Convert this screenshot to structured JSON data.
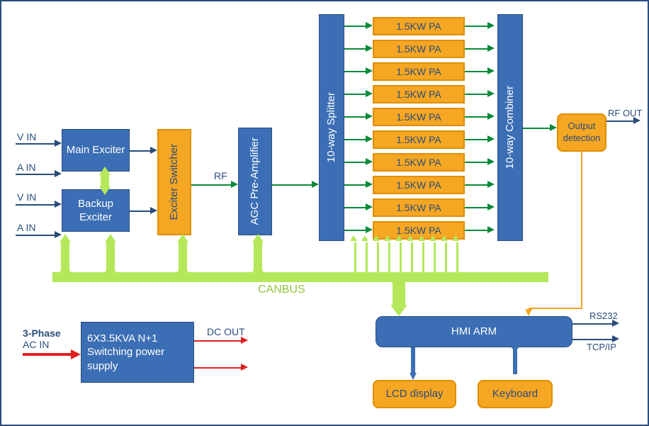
{
  "labels": {
    "vin1": "V IN",
    "ain1": "A IN",
    "vin2": "V IN",
    "ain2": "A IN",
    "rf": "RF",
    "canbus": "CANBUS",
    "rfout": "RF OUT",
    "rs232": "RS232",
    "tcpip": "TCP/IP",
    "dcout": "DC OUT",
    "threephase1": "3-Phase",
    "threephase2": "AC IN"
  },
  "blocks": {
    "main_exciter": "Main Exciter",
    "backup_exciter": "Backup Exciter",
    "exciter_switcher": "Exciter Switcher",
    "agc_preamp": "AGC Pre-Amplifier",
    "splitter": "10-way Splitter",
    "combiner": "10-way Combiner",
    "pa": "1.5KW PA",
    "output_detection": "Output detection",
    "power_supply": "6X3.5KVA N+1 Switching power supply",
    "hmi_arm": "HMI ARM",
    "lcd": "LCD display",
    "keyboard": "Keyboard"
  },
  "colors": {
    "blue": "#3b6eb5",
    "orange": "#f5a623",
    "green": "#0a8a3a",
    "red": "#e02020",
    "lime": "#b4e85a",
    "dark": "#2a4d7a"
  },
  "pa_count": 10
}
